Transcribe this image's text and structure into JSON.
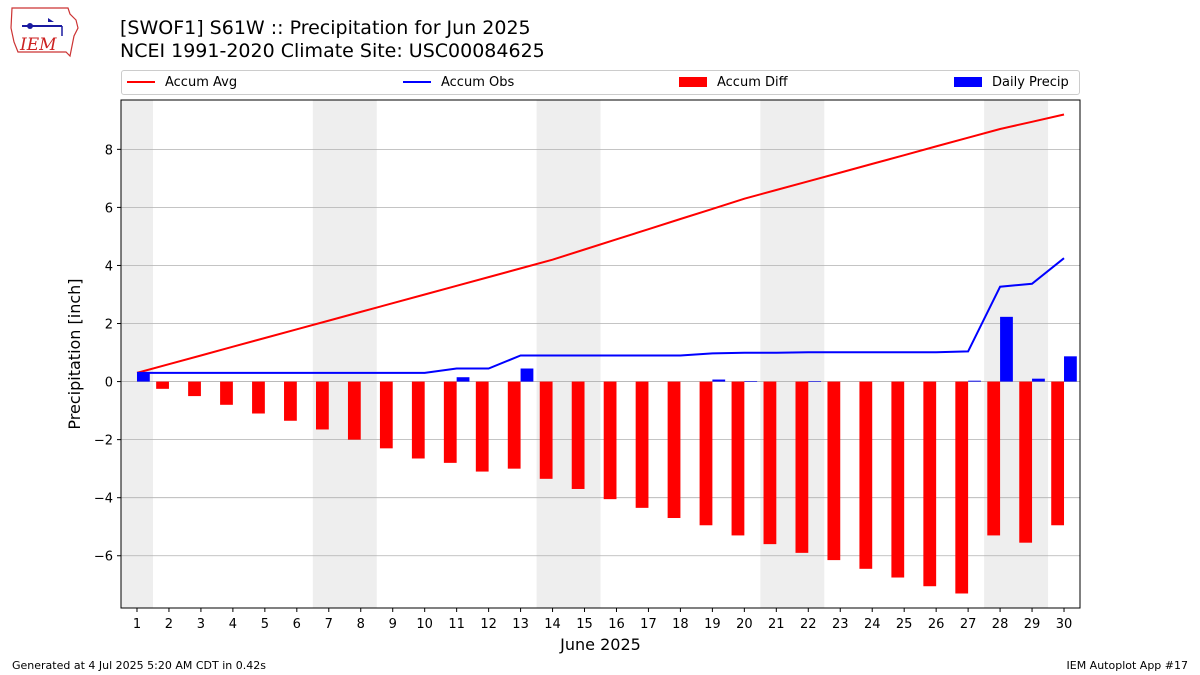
{
  "header": {
    "title_line1": "[SWOF1] S61W :: Precipitation for Jun 2025",
    "title_line2": "NCEI 1991-2020 Climate Site: USC00084625",
    "logo_text": "IEM"
  },
  "footer": {
    "left": "Generated at 4 Jul 2025 5:20 AM CDT in 0.42s",
    "right": "IEM Autoplot App #17"
  },
  "colors": {
    "accum_avg": "#ff0000",
    "accum_obs": "#0000ff",
    "accum_diff": "#ff0000",
    "daily_precip": "#0000ff",
    "weekend_shade": "#eeeeee",
    "grid": "#b0b0b0"
  },
  "chart_data": {
    "type": "bar",
    "xlabel": "June 2025",
    "ylabel": "Precipitation [inch]",
    "ylim": [
      -7.8,
      9.7
    ],
    "yticks": [
      -6,
      -4,
      -2,
      0,
      2,
      4,
      6,
      8
    ],
    "grid": "horizontal",
    "legend_position": "top",
    "categories": [
      "1",
      "2",
      "3",
      "4",
      "5",
      "6",
      "7",
      "8",
      "9",
      "10",
      "11",
      "12",
      "13",
      "14",
      "15",
      "16",
      "17",
      "18",
      "19",
      "20",
      "21",
      "22",
      "23",
      "24",
      "25",
      "26",
      "27",
      "28",
      "29",
      "30"
    ],
    "shaded_days": [
      [
        1,
        1
      ],
      [
        7,
        8
      ],
      [
        14,
        15
      ],
      [
        21,
        22
      ],
      [
        28,
        29
      ]
    ],
    "series": [
      {
        "name": "Accum Avg",
        "kind": "line",
        "values": [
          0.3,
          0.6,
          0.9,
          1.2,
          1.5,
          1.8,
          2.1,
          2.4,
          2.7,
          3.0,
          3.3,
          3.6,
          3.9,
          4.2,
          4.55,
          4.9,
          5.25,
          5.6,
          5.95,
          6.3,
          6.6,
          6.9,
          7.2,
          7.5,
          7.8,
          8.1,
          8.4,
          8.7,
          8.95,
          9.2
        ]
      },
      {
        "name": "Accum Obs",
        "kind": "line",
        "values": [
          0.3,
          0.3,
          0.3,
          0.3,
          0.3,
          0.3,
          0.3,
          0.3,
          0.3,
          0.3,
          0.45,
          0.45,
          0.9,
          0.9,
          0.9,
          0.9,
          0.9,
          0.9,
          0.97,
          0.99,
          0.99,
          1.01,
          1.01,
          1.01,
          1.01,
          1.01,
          1.04,
          3.27,
          3.37,
          4.25
        ]
      },
      {
        "name": "Accum Diff",
        "kind": "bar",
        "values": [
          0.0,
          -0.25,
          -0.5,
          -0.8,
          -1.1,
          -1.35,
          -1.65,
          -2.0,
          -2.3,
          -2.65,
          -2.8,
          -3.1,
          -3.0,
          -3.35,
          -3.7,
          -4.05,
          -4.35,
          -4.7,
          -4.95,
          -5.3,
          -5.6,
          -5.9,
          -6.15,
          -6.45,
          -6.75,
          -7.05,
          -7.3,
          -5.3,
          -5.55,
          -4.95
        ]
      },
      {
        "name": "Daily Precip",
        "kind": "bar",
        "values": [
          0.3,
          0.0,
          0.0,
          0.0,
          0.0,
          0.0,
          0.0,
          0.0,
          0.0,
          0.0,
          0.15,
          0.0,
          0.45,
          0.0,
          0.0,
          0.0,
          0.0,
          0.0,
          0.07,
          0.02,
          0.0,
          0.02,
          0.0,
          0.0,
          0.0,
          0.0,
          0.03,
          2.23,
          0.1,
          0.87
        ]
      }
    ]
  }
}
